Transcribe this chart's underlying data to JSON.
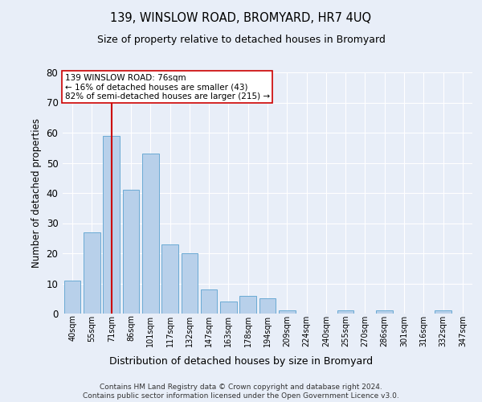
{
  "title": "139, WINSLOW ROAD, BROMYARD, HR7 4UQ",
  "subtitle": "Size of property relative to detached houses in Bromyard",
  "xlabel": "Distribution of detached houses by size in Bromyard",
  "ylabel": "Number of detached properties",
  "bar_labels": [
    "40sqm",
    "55sqm",
    "71sqm",
    "86sqm",
    "101sqm",
    "117sqm",
    "132sqm",
    "147sqm",
    "163sqm",
    "178sqm",
    "194sqm",
    "209sqm",
    "224sqm",
    "240sqm",
    "255sqm",
    "270sqm",
    "286sqm",
    "301sqm",
    "316sqm",
    "332sqm",
    "347sqm"
  ],
  "bar_values": [
    11,
    27,
    59,
    41,
    53,
    23,
    20,
    8,
    4,
    6,
    5,
    1,
    0,
    0,
    1,
    0,
    1,
    0,
    0,
    1,
    0
  ],
  "bar_color": "#b8d0ea",
  "bar_edge_color": "#6aaad4",
  "vline_x": 2,
  "vline_color": "#cc0000",
  "annotation_text": "139 WINSLOW ROAD: 76sqm\n← 16% of detached houses are smaller (43)\n82% of semi-detached houses are larger (215) →",
  "annotation_box_color": "#ffffff",
  "annotation_box_edge": "#cc0000",
  "ylim": [
    0,
    80
  ],
  "yticks": [
    0,
    10,
    20,
    30,
    40,
    50,
    60,
    70,
    80
  ],
  "background_color": "#e8eef8",
  "plot_bg_color": "#e8eef8",
  "grid_color": "#ffffff",
  "footer_line1": "Contains HM Land Registry data © Crown copyright and database right 2024.",
  "footer_line2": "Contains public sector information licensed under the Open Government Licence v3.0."
}
